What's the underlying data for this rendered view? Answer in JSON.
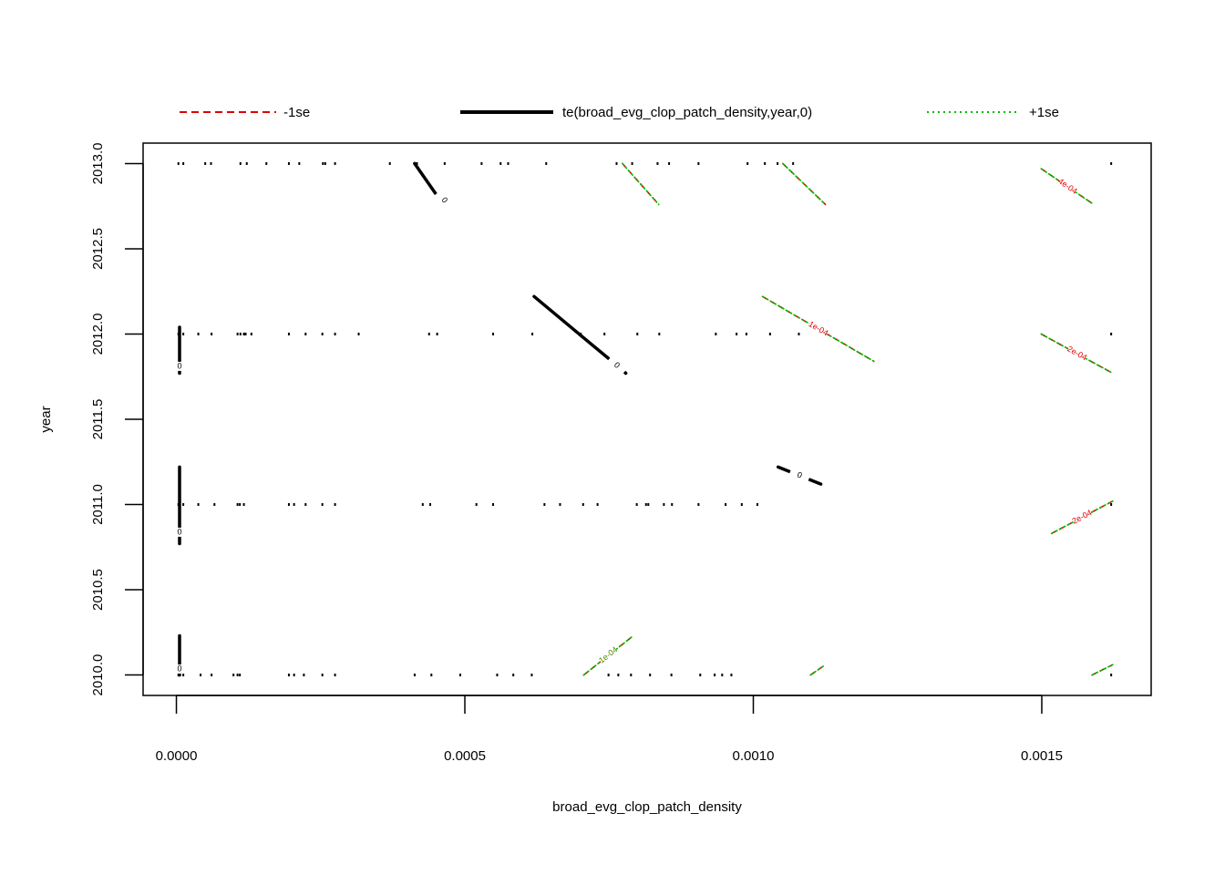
{
  "chart_data": {
    "type": "contour",
    "title": "",
    "xlabel": "broad_evg_clop_patch_density",
    "ylabel": "year",
    "xlim": [
      -5.77e-05,
      0.0016896
    ],
    "ylim": [
      2009.88,
      2013.12
    ],
    "xticks": [
      0.0,
      0.0005,
      0.001,
      0.0015
    ],
    "xtick_labels": [
      "0.0000",
      "0.0005",
      "0.0010",
      "0.0015"
    ],
    "yticks": [
      2010.0,
      2010.5,
      2011.0,
      2011.5,
      2012.0,
      2012.5,
      2013.0
    ],
    "ytick_labels": [
      "2010.0",
      "2010.5",
      "2011.0",
      "2011.5",
      "2012.0",
      "2012.5",
      "2013.0"
    ],
    "legend": {
      "placement": "top",
      "entries": [
        {
          "label": "-1se",
          "color": "#dd0000",
          "style": "dashed"
        },
        {
          "label": "te(broad_evg_clop_patch_density,year,0)",
          "color": "#000000",
          "style": "solid"
        },
        {
          "label": "+1se",
          "color": "#00bb00",
          "style": "dotted"
        }
      ]
    },
    "rug": [
      {
        "year": 2013,
        "x": [
          3.5e-06,
          1.2e-05,
          5e-05,
          6e-05,
          0.000111,
          0.000122,
          0.000156,
          0.000195,
          0.000213,
          0.000254,
          0.000258,
          0.000275,
          0.00037,
          0.000417,
          0.000465,
          0.000529,
          0.000562,
          0.000575,
          0.000641,
          0.000763,
          0.00079,
          0.000834,
          0.000854,
          0.000905,
          0.00099,
          0.00102,
          0.001042,
          0.001069,
          0.0016203
        ]
      },
      {
        "year": 2012,
        "x": [
          3.5e-06,
          1.2e-05,
          3.8e-05,
          6.1e-05,
          0.000106,
          0.000111,
          0.000117,
          0.00012,
          0.00013,
          0.000195,
          0.000224,
          0.000253,
          0.000275,
          0.000316,
          0.000438,
          0.000452,
          0.000549,
          0.000617,
          0.000701,
          0.000742,
          0.000799,
          0.000837,
          0.000935,
          0.000971,
          0.000988,
          0.001029,
          0.001079,
          0.0016203
        ]
      },
      {
        "year": 2011,
        "x": [
          3.5e-06,
          1.2e-05,
          3.8e-05,
          6.6e-05,
          0.000106,
          0.00011,
          0.000117,
          0.000195,
          0.000204,
          0.000224,
          0.000253,
          0.000275,
          0.000427,
          0.00044,
          0.00052,
          0.000549,
          0.000638,
          0.000665,
          0.000705,
          0.00073,
          0.000798,
          0.000814,
          0.000818,
          0.000845,
          0.000859,
          0.000905,
          0.000952,
          0.00098,
          0.001007,
          0.0016203
        ]
      },
      {
        "year": 2010,
        "x": [
          3.5e-06,
          1.2e-05,
          4.2e-05,
          6.1e-05,
          9.9e-05,
          0.000106,
          0.00011,
          0.000195,
          0.000204,
          0.000221,
          0.000253,
          0.000275,
          0.000413,
          0.000442,
          0.000492,
          0.000556,
          0.000584,
          0.000616,
          0.000749,
          0.000766,
          0.000788,
          0.000821,
          0.000858,
          0.000908,
          0.000933,
          0.000946,
          0.000962,
          0.0016203
        ]
      }
    ],
    "contours": {
      "fit": [
        {
          "label": "0",
          "points": [
            [
              5.5e-06,
              2012.04
            ],
            [
              5.5e-06,
              2011.77
            ]
          ]
        },
        {
          "label": "0",
          "points": [
            [
              5.5e-06,
              2011.22
            ],
            [
              5.5e-06,
              2010.77
            ]
          ]
        },
        {
          "label": "0",
          "points": [
            [
              5.5e-06,
              2010.23
            ],
            [
              5.5e-06,
              2010.0
            ]
          ]
        },
        {
          "label": "0",
          "points": [
            [
              0.000413,
              2013.0
            ],
            [
              0.00045,
              2012.82
            ],
            [
              0.00047,
              2012.76
            ]
          ]
        },
        {
          "label": "0",
          "points": [
            [
              0.00062,
              2012.22
            ],
            [
              0.000705,
              2011.98
            ],
            [
              0.000755,
              2011.84
            ],
            [
              0.000779,
              2011.77
            ]
          ]
        },
        {
          "label": "0",
          "points": [
            [
              0.001043,
              2011.22
            ],
            [
              0.001117,
              2011.12
            ]
          ]
        }
      ],
      "minus_se": [
        {
          "label": "",
          "points": [
            [
              0.000773,
              2013.0
            ],
            [
              0.000836,
              2012.76
            ]
          ]
        },
        {
          "label": "",
          "points": [
            [
              0.001051,
              2013.0
            ],
            [
              0.001125,
              2012.76
            ]
          ]
        },
        {
          "label": "4e-04",
          "points": [
            [
              0.001499,
              2012.97
            ],
            [
              0.00159,
              2012.76
            ]
          ]
        },
        {
          "label": "1e-04",
          "points": [
            [
              0.001016,
              2012.22
            ],
            [
              0.001209,
              2011.84
            ]
          ]
        },
        {
          "label": "2e-04",
          "points": [
            [
              0.001499,
              2012.0
            ],
            [
              0.001623,
              2011.77
            ]
          ]
        },
        {
          "label": "2e-04",
          "points": [
            [
              0.001517,
              2010.83
            ],
            [
              0.001623,
              2011.02
            ]
          ]
        },
        {
          "label": "",
          "points": [
            [
              0.000706,
              2010.0
            ],
            [
              0.000792,
              2010.23
            ]
          ]
        },
        {
          "label": "",
          "points": [
            [
              0.001099,
              2010.0
            ],
            [
              0.001125,
              2010.06
            ]
          ]
        },
        {
          "label": "",
          "points": [
            [
              0.001587,
              2010.0
            ],
            [
              0.001623,
              2010.06
            ]
          ]
        }
      ],
      "plus_se": [
        {
          "label": "",
          "points": [
            [
              0.000773,
              2013.0
            ],
            [
              0.000836,
              2012.76
            ]
          ]
        },
        {
          "label": "",
          "points": [
            [
              0.001051,
              2013.0
            ],
            [
              0.001125,
              2012.76
            ]
          ]
        },
        {
          "label": "",
          "points": [
            [
              0.001499,
              2012.97
            ],
            [
              0.00159,
              2012.76
            ]
          ]
        },
        {
          "label": "",
          "points": [
            [
              0.001016,
              2012.22
            ],
            [
              0.001209,
              2011.84
            ]
          ]
        },
        {
          "label": "",
          "points": [
            [
              0.001499,
              2012.0
            ],
            [
              0.001623,
              2011.77
            ]
          ]
        },
        {
          "label": "",
          "points": [
            [
              0.001517,
              2010.83
            ],
            [
              0.001623,
              2011.02
            ]
          ]
        },
        {
          "label": "1e-04",
          "points": [
            [
              0.000706,
              2010.0
            ],
            [
              0.000792,
              2010.23
            ]
          ]
        },
        {
          "label": "",
          "points": [
            [
              0.001099,
              2010.0
            ],
            [
              0.001125,
              2010.06
            ]
          ]
        },
        {
          "label": "",
          "points": [
            [
              0.001587,
              2010.0
            ],
            [
              0.001623,
              2010.06
            ]
          ]
        }
      ]
    }
  }
}
